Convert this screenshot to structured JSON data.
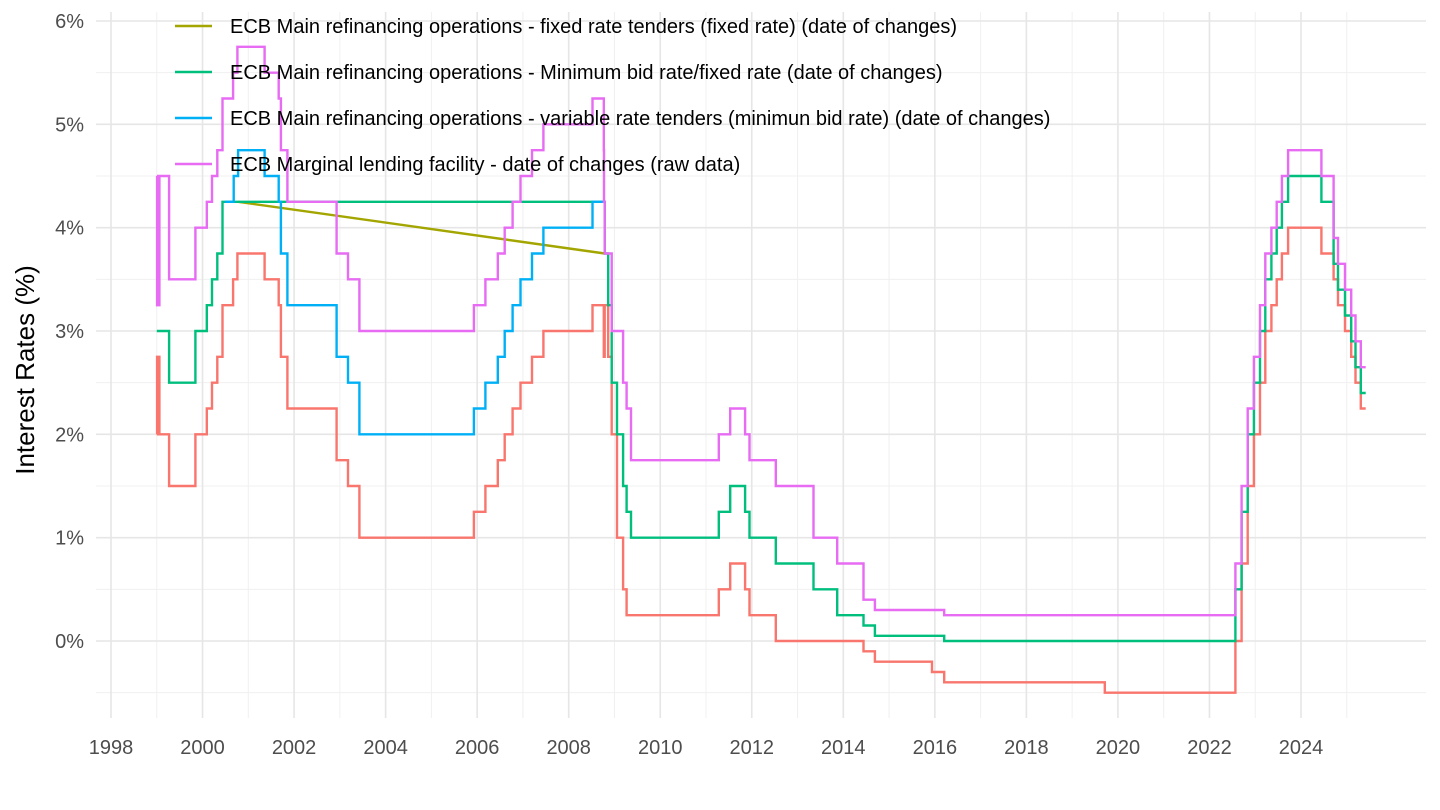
{
  "chart_data": {
    "type": "line",
    "title": "",
    "xlabel": "",
    "ylabel": "Interest Rates (%)",
    "x_ticks": [
      "1998",
      "2000",
      "2002",
      "2004",
      "2006",
      "2008",
      "2010",
      "2012",
      "2014",
      "2016",
      "2018",
      "2020",
      "2022",
      "2024"
    ],
    "y_ticks": [
      "0%",
      "1%",
      "2%",
      "3%",
      "4%",
      "5%",
      "6%"
    ],
    "xlim": [
      1997.8,
      2026.4
    ],
    "ylim": [
      -0.75,
      6.05
    ],
    "grid": true,
    "legend_position": "top-left",
    "series": [
      {
        "name": "",
        "color": "#F8766D",
        "step": true,
        "points": [
          [
            "1999-01-01",
            2.0
          ],
          [
            "1999-01-04",
            2.75
          ],
          [
            "1999-01-22",
            2.0
          ],
          [
            "1999-04-09",
            1.5
          ],
          [
            "1999-11-05",
            2.0
          ],
          [
            "2000-02-04",
            2.25
          ],
          [
            "2000-03-17",
            2.5
          ],
          [
            "2000-04-28",
            2.75
          ],
          [
            "2000-06-09",
            3.25
          ],
          [
            "2000-09-01",
            3.5
          ],
          [
            "2000-10-06",
            3.75
          ],
          [
            "2001-05-11",
            3.5
          ],
          [
            "2001-08-31",
            3.25
          ],
          [
            "2001-09-18",
            2.75
          ],
          [
            "2001-11-09",
            2.25
          ],
          [
            "2002-12-06",
            1.75
          ],
          [
            "2003-03-07",
            1.5
          ],
          [
            "2003-06-06",
            1.0
          ],
          [
            "2005-12-06",
            1.25
          ],
          [
            "2006-03-08",
            1.5
          ],
          [
            "2006-06-15",
            1.75
          ],
          [
            "2006-08-09",
            2.0
          ],
          [
            "2006-10-11",
            2.25
          ],
          [
            "2006-12-13",
            2.5
          ],
          [
            "2007-03-14",
            2.75
          ],
          [
            "2007-06-13",
            3.0
          ],
          [
            "2008-07-09",
            3.25
          ],
          [
            "2008-10-08",
            2.75
          ],
          [
            "2008-10-15",
            3.25
          ],
          [
            "2008-11-12",
            2.75
          ],
          [
            "2008-12-10",
            2.0
          ],
          [
            "2009-01-21",
            1.0
          ],
          [
            "2009-03-11",
            0.5
          ],
          [
            "2009-04-08",
            0.25
          ],
          [
            "2011-04-13",
            0.5
          ],
          [
            "2011-07-13",
            0.75
          ],
          [
            "2011-11-09",
            0.5
          ],
          [
            "2011-12-14",
            0.25
          ],
          [
            "2012-07-11",
            0.0
          ],
          [
            "2014-06-11",
            -0.1
          ],
          [
            "2014-09-10",
            -0.2
          ],
          [
            "2015-12-09",
            -0.3
          ],
          [
            "2016-03-16",
            -0.4
          ],
          [
            "2019-09-18",
            -0.5
          ],
          [
            "2022-07-27",
            0.0
          ],
          [
            "2022-09-14",
            0.75
          ],
          [
            "2022-11-02",
            1.5
          ],
          [
            "2022-12-21",
            2.0
          ],
          [
            "2023-02-08",
            2.5
          ],
          [
            "2023-03-22",
            3.0
          ],
          [
            "2023-05-10",
            3.25
          ],
          [
            "2023-06-21",
            3.5
          ],
          [
            "2023-08-02",
            3.75
          ],
          [
            "2023-09-20",
            4.0
          ],
          [
            "2024-06-12",
            3.75
          ],
          [
            "2024-09-18",
            3.5
          ],
          [
            "2024-10-23",
            3.25
          ],
          [
            "2024-12-18",
            3.0
          ],
          [
            "2025-02-05",
            2.75
          ],
          [
            "2025-03-12",
            2.5
          ],
          [
            "2025-04-23",
            2.25
          ],
          [
            "2025-06-01",
            2.25
          ]
        ]
      },
      {
        "name": "ECB Main refinancing operations - fixed rate tenders (fixed rate) (date of changes)",
        "color": "#A3A500",
        "step": false,
        "points": [
          [
            "2000-10-11",
            4.25
          ],
          [
            "2008-10-15",
            3.75
          ]
        ]
      },
      {
        "name": "ECB Main refinancing operations - Minimum bid rate/fixed rate (date of changes)",
        "color": "#00BF7D",
        "step": true,
        "points": [
          [
            "1999-01-01",
            3.0
          ],
          [
            "1999-04-09",
            2.5
          ],
          [
            "1999-11-05",
            3.0
          ],
          [
            "2000-02-04",
            3.25
          ],
          [
            "2000-03-17",
            3.5
          ],
          [
            "2000-04-28",
            3.75
          ],
          [
            "2000-06-09",
            4.25
          ],
          [
            "2000-10-11",
            4.25
          ],
          [
            "2008-10-15",
            3.75
          ],
          [
            "2008-11-12",
            3.25
          ],
          [
            "2008-12-10",
            2.5
          ],
          [
            "2009-01-21",
            2.0
          ],
          [
            "2009-03-11",
            1.5
          ],
          [
            "2009-04-08",
            1.25
          ],
          [
            "2009-05-13",
            1.0
          ],
          [
            "2011-04-13",
            1.25
          ],
          [
            "2011-07-13",
            1.5
          ],
          [
            "2011-11-09",
            1.25
          ],
          [
            "2011-12-14",
            1.0
          ],
          [
            "2012-07-11",
            0.75
          ],
          [
            "2013-05-08",
            0.5
          ],
          [
            "2013-11-13",
            0.25
          ],
          [
            "2014-06-11",
            0.15
          ],
          [
            "2014-09-10",
            0.05
          ],
          [
            "2016-03-16",
            0.0
          ],
          [
            "2022-07-27",
            0.5
          ],
          [
            "2022-09-14",
            1.25
          ],
          [
            "2022-11-02",
            2.0
          ],
          [
            "2022-12-21",
            2.5
          ],
          [
            "2023-02-08",
            3.0
          ],
          [
            "2023-03-22",
            3.5
          ],
          [
            "2023-05-10",
            3.75
          ],
          [
            "2023-06-21",
            4.0
          ],
          [
            "2023-08-02",
            4.25
          ],
          [
            "2023-09-20",
            4.5
          ],
          [
            "2024-06-12",
            4.25
          ],
          [
            "2024-09-18",
            3.65
          ],
          [
            "2024-10-23",
            3.4
          ],
          [
            "2024-12-18",
            3.15
          ],
          [
            "2025-02-05",
            2.9
          ],
          [
            "2025-03-12",
            2.65
          ],
          [
            "2025-04-23",
            2.4
          ],
          [
            "2025-06-01",
            2.4
          ]
        ]
      },
      {
        "name": "ECB Main refinancing operations - variable rate tenders (minimun bid rate) (date of changes)",
        "color": "#00B0F6",
        "step": true,
        "points": [
          [
            "2000-06-28",
            4.25
          ],
          [
            "2000-09-06",
            4.5
          ],
          [
            "2000-10-11",
            4.75
          ],
          [
            "2001-05-11",
            4.5
          ],
          [
            "2001-08-31",
            4.25
          ],
          [
            "2001-09-18",
            3.75
          ],
          [
            "2001-11-09",
            3.25
          ],
          [
            "2002-12-06",
            2.75
          ],
          [
            "2003-03-07",
            2.5
          ],
          [
            "2003-06-06",
            2.0
          ],
          [
            "2005-12-06",
            2.25
          ],
          [
            "2006-03-08",
            2.5
          ],
          [
            "2006-06-15",
            2.75
          ],
          [
            "2006-08-09",
            3.0
          ],
          [
            "2006-10-11",
            3.25
          ],
          [
            "2006-12-13",
            3.5
          ],
          [
            "2007-03-14",
            3.75
          ],
          [
            "2007-06-13",
            4.0
          ],
          [
            "2008-07-09",
            4.25
          ],
          [
            "2008-10-15",
            4.25
          ]
        ]
      },
      {
        "name": "ECB Marginal lending facility - date of changes (raw data)",
        "color": "#E76BF3",
        "step": true,
        "points": [
          [
            "1999-01-01",
            4.5
          ],
          [
            "1999-01-04",
            3.25
          ],
          [
            "1999-01-22",
            4.5
          ],
          [
            "1999-04-09",
            3.5
          ],
          [
            "1999-11-05",
            4.0
          ],
          [
            "2000-02-04",
            4.25
          ],
          [
            "2000-03-17",
            4.5
          ],
          [
            "2000-04-28",
            4.75
          ],
          [
            "2000-06-09",
            5.25
          ],
          [
            "2000-09-01",
            5.5
          ],
          [
            "2000-10-06",
            5.75
          ],
          [
            "2001-05-11",
            5.5
          ],
          [
            "2001-08-31",
            5.25
          ],
          [
            "2001-09-18",
            4.75
          ],
          [
            "2001-11-09",
            4.25
          ],
          [
            "2002-12-06",
            3.75
          ],
          [
            "2003-03-07",
            3.5
          ],
          [
            "2003-06-06",
            3.0
          ],
          [
            "2005-12-06",
            3.25
          ],
          [
            "2006-03-08",
            3.5
          ],
          [
            "2006-06-15",
            3.75
          ],
          [
            "2006-08-09",
            4.0
          ],
          [
            "2006-10-11",
            4.25
          ],
          [
            "2006-12-13",
            4.5
          ],
          [
            "2007-03-14",
            4.75
          ],
          [
            "2007-06-13",
            5.0
          ],
          [
            "2008-07-09",
            5.25
          ],
          [
            "2008-10-08",
            4.75
          ],
          [
            "2008-10-09",
            4.25
          ],
          [
            "2008-10-15",
            3.75
          ],
          [
            "2008-11-12",
            3.75
          ],
          [
            "2008-12-10",
            3.0
          ],
          [
            "2009-01-21",
            3.0
          ],
          [
            "2009-03-11",
            2.5
          ],
          [
            "2009-04-08",
            2.25
          ],
          [
            "2009-05-13",
            1.75
          ],
          [
            "2011-04-13",
            2.0
          ],
          [
            "2011-07-13",
            2.25
          ],
          [
            "2011-11-09",
            2.0
          ],
          [
            "2011-12-14",
            1.75
          ],
          [
            "2012-07-11",
            1.5
          ],
          [
            "2013-05-08",
            1.0
          ],
          [
            "2013-11-13",
            0.75
          ],
          [
            "2014-06-11",
            0.4
          ],
          [
            "2014-09-10",
            0.3
          ],
          [
            "2016-03-16",
            0.25
          ],
          [
            "2022-07-27",
            0.75
          ],
          [
            "2022-09-14",
            1.5
          ],
          [
            "2022-11-02",
            2.25
          ],
          [
            "2022-12-21",
            2.75
          ],
          [
            "2023-02-08",
            3.25
          ],
          [
            "2023-03-22",
            3.75
          ],
          [
            "2023-05-10",
            4.0
          ],
          [
            "2023-06-21",
            4.25
          ],
          [
            "2023-08-02",
            4.5
          ],
          [
            "2023-09-20",
            4.75
          ],
          [
            "2024-06-12",
            4.5
          ],
          [
            "2024-09-18",
            3.9
          ],
          [
            "2024-10-23",
            3.65
          ],
          [
            "2024-12-18",
            3.4
          ],
          [
            "2025-02-05",
            3.15
          ],
          [
            "2025-03-12",
            2.9
          ],
          [
            "2025-04-23",
            2.65
          ],
          [
            "2025-06-01",
            2.65
          ]
        ]
      }
    ]
  }
}
